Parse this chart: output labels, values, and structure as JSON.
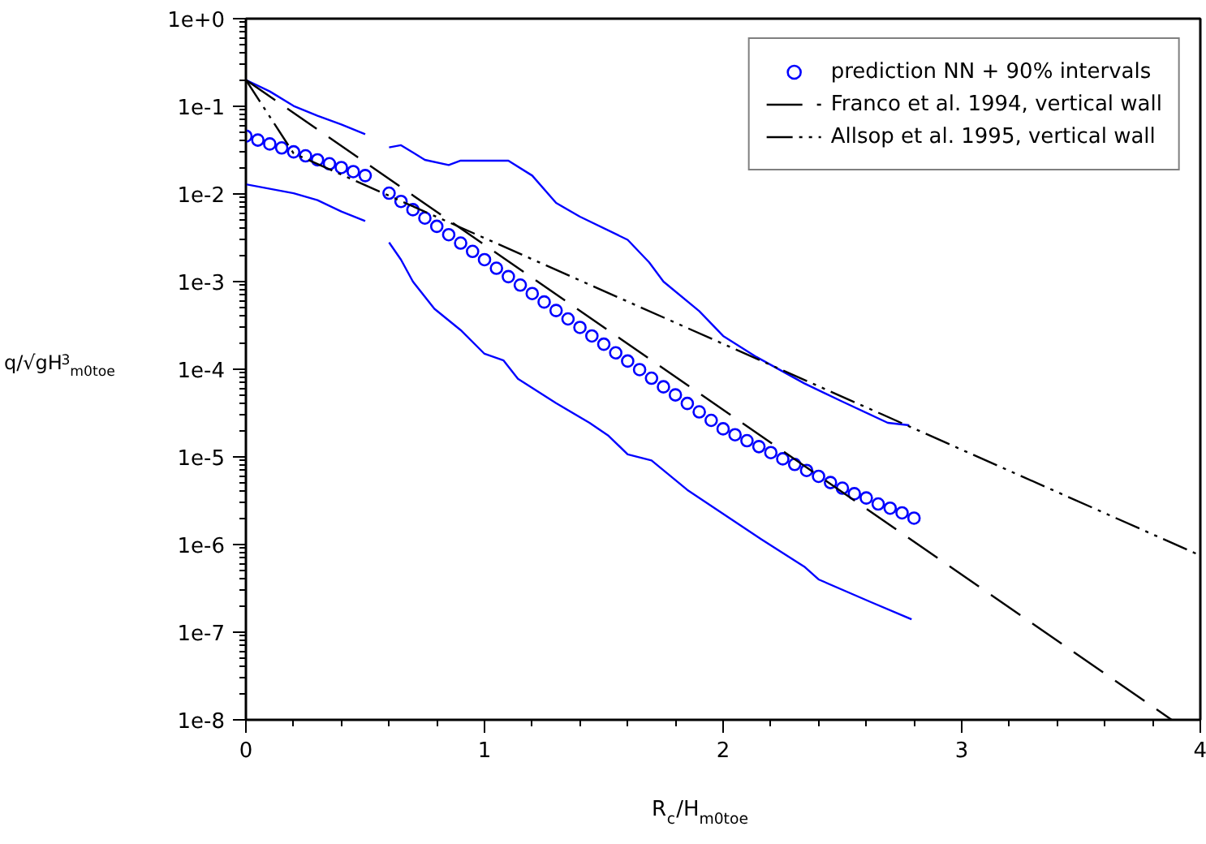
{
  "chart_data": {
    "type": "line",
    "xlabel": "R$_{c}$/H$_{m0toe}$",
    "ylabel": "q/√gH$^{3}$$_{m0toe}$",
    "log": "y",
    "xlim": [
      0,
      4
    ],
    "ylim": [
      1e-08,
      1
    ],
    "xticks": [
      0,
      1,
      2,
      3,
      4
    ],
    "yticks": [
      {
        "value": 1e-08,
        "label": "1e-8"
      },
      {
        "value": 1e-07,
        "label": "1e-7"
      },
      {
        "value": 1e-06,
        "label": "1e-6"
      },
      {
        "value": 1e-05,
        "label": "1e-5"
      },
      {
        "value": 0.0001,
        "label": "1e-4"
      },
      {
        "value": 0.001,
        "label": "1e-3"
      },
      {
        "value": 0.01,
        "label": "1e-2"
      },
      {
        "value": 0.1,
        "label": "1e-1"
      },
      {
        "value": 1,
        "label": "1e+0"
      }
    ],
    "legend": "top right",
    "series": [
      {
        "name": "prediction NN + 90% intervals",
        "type": "scatter",
        "marker": "circle",
        "color": "#0000ff",
        "x": [
          0,
          0.05,
          0.1,
          0.15,
          0.2,
          0.25,
          0.3,
          0.35,
          0.4,
          0.45,
          0.5,
          0.6,
          0.65,
          0.7,
          0.75,
          0.8,
          0.85,
          0.9,
          0.95,
          1.0,
          1.05,
          1.1,
          1.15,
          1.2,
          1.25,
          1.3,
          1.35,
          1.4,
          1.45,
          1.5,
          1.55,
          1.6,
          1.65,
          1.7,
          1.75,
          1.8,
          1.85,
          1.9,
          1.95,
          2.0,
          2.05,
          2.1,
          2.15,
          2.2,
          2.25,
          2.3,
          2.35,
          2.4,
          2.45,
          2.5,
          2.55,
          2.6,
          2.65,
          2.7,
          2.75,
          2.8
        ],
        "values": [
          0.0457,
          0.0412,
          0.0372,
          0.0335,
          0.0302,
          0.0272,
          0.0245,
          0.0221,
          0.02,
          0.018,
          0.0162,
          0.0102,
          0.00822,
          0.00661,
          0.00531,
          0.00427,
          0.00343,
          0.00275,
          0.00221,
          0.00178,
          0.00142,
          0.00114,
          0.000912,
          0.000731,
          0.000585,
          0.000468,
          0.000375,
          0.0003,
          0.00024,
          0.000193,
          0.000154,
          0.000124,
          9.9e-05,
          7.9e-05,
          6.3e-05,
          5.1e-05,
          4.07e-05,
          3.26e-05,
          2.61e-05,
          2.09e-05,
          1.79e-05,
          1.53e-05,
          1.31e-05,
          1.12e-05,
          9.5e-06,
          8.2e-06,
          7e-06,
          6e-06,
          5.1e-06,
          4.4e-06,
          3.8e-06,
          3.4e-06,
          2.9e-06,
          2.6e-06,
          2.3e-06,
          2e-06
        ]
      },
      {
        "type": "line",
        "line_style": "solid",
        "color": "#0000ff",
        "x": [
          0,
          0.1,
          0.2,
          0.3,
          0.4,
          0.5,
          0.55,
          0.6,
          0.65,
          0.75,
          0.85,
          0.9,
          1.0,
          1.1,
          1.2,
          1.3,
          1.4,
          1.6,
          1.69,
          1.75,
          1.9,
          2.0,
          2.14,
          2.34,
          2.49,
          2.69,
          2.78
        ],
        "values": [
          0.2,
          0.148,
          0.101,
          0.078,
          0.062,
          0.048,
          null,
          0.034,
          0.036,
          0.0245,
          0.0214,
          0.024,
          0.024,
          0.024,
          0.0162,
          0.0079,
          0.0055,
          0.003,
          0.00166,
          0.001,
          0.00046,
          0.00024,
          0.000138,
          6.9e-05,
          4.4e-05,
          2.45e-05,
          2.3e-05
        ]
      },
      {
        "type": "line",
        "line_style": "solid",
        "color": "#0000ff",
        "x": [
          0,
          0.2,
          0.3,
          0.4,
          0.5,
          0.55,
          0.6,
          0.65,
          0.7,
          0.79,
          0.9,
          1.0,
          1.08,
          1.14,
          1.3,
          1.44,
          1.52,
          1.6,
          1.7,
          1.85,
          2.16,
          2.34,
          2.4,
          2.62,
          2.79
        ],
        "values": [
          0.0129,
          0.0102,
          0.0085,
          0.0063,
          0.0049,
          null,
          0.0028,
          0.00178,
          0.001,
          0.00049,
          0.00028,
          0.00015,
          0.000126,
          7.8e-05,
          4.1e-05,
          2.45e-05,
          1.74e-05,
          1.07e-05,
          9.1e-06,
          4.2e-06,
          1.15e-06,
          5.6e-07,
          4e-07,
          2.2e-07,
          1.4e-07
        ]
      },
      {
        "name": "Franco et al. 1994, vertical wall",
        "line_style": "dashed",
        "color": "#000000",
        "x": [
          0,
          3.88
        ],
        "values": [
          0.2,
          1e-08
        ]
      },
      {
        "name": "Allsop et al. 1995, vertical wall",
        "line_style": "dashdotdot",
        "color": "#000000",
        "x": [
          0,
          0.2,
          4
        ],
        "values": [
          0.2,
          0.029,
          7.5e-07
        ]
      }
    ]
  }
}
